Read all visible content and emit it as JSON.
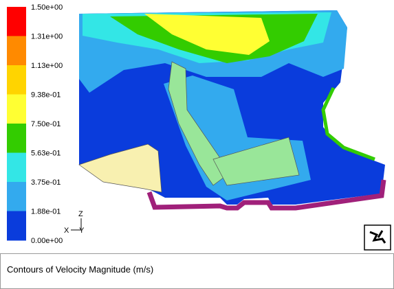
{
  "colorbar": {
    "labels": [
      "1.50e+00",
      "1.31e+00",
      "1.13e+00",
      "9.38e-01",
      "7.50e-01",
      "5.63e-01",
      "3.75e-01",
      "1.88e-01",
      "0.00e+00"
    ],
    "colors": [
      "#ff0000",
      "#ff8a00",
      "#ffd400",
      "#ffff33",
      "#33cc00",
      "#33e6e6",
      "#33aaee",
      "#0a3cdc"
    ]
  },
  "triad": {
    "z": "Z",
    "x": "X",
    "y": "Y"
  },
  "caption": "Contours of Velocity Magnitude (m/s)"
}
